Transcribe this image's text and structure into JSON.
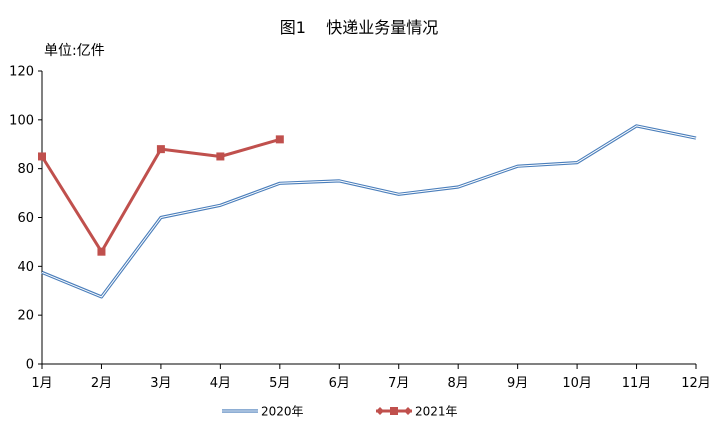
{
  "chart_data": {
    "type": "line",
    "title": "图1    快递业务量情况",
    "unit_label": "单位:亿件",
    "categories": [
      "1月",
      "2月",
      "3月",
      "4月",
      "5月",
      "6月",
      "7月",
      "8月",
      "9月",
      "10月",
      "11月",
      "12月"
    ],
    "ylim": [
      0,
      120
    ],
    "yticks": [
      "0",
      "20",
      "40",
      "60",
      "80",
      "100",
      "120"
    ],
    "grid": false,
    "legend_position": "bottom",
    "series": [
      {
        "name": "2020年",
        "color": "#4a7ebb",
        "marker": "none",
        "values": [
          37.5,
          27.5,
          60,
          65,
          74,
          75,
          69.5,
          72.5,
          81,
          82.5,
          97.5,
          92.5
        ]
      },
      {
        "name": "2021年",
        "color": "#c0504d",
        "marker": "square",
        "values": [
          85,
          46,
          88,
          85,
          92,
          null,
          null,
          null,
          null,
          null,
          null,
          null
        ]
      }
    ]
  }
}
